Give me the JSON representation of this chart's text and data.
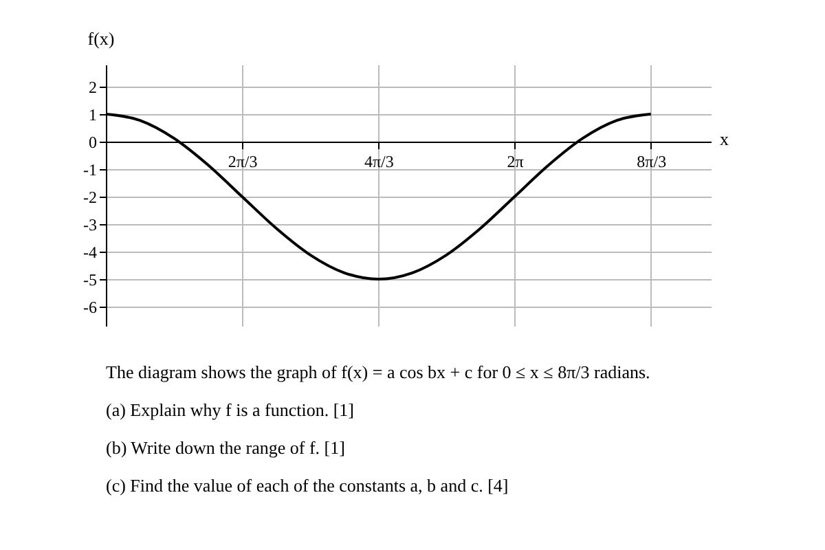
{
  "chart_data": {
    "type": "line",
    "xlabel": "x",
    "ylabel": "f(x)",
    "x": [
      0,
      0.524,
      1.047,
      1.571,
      2.094,
      2.618,
      3.142,
      3.665,
      4.189,
      4.712,
      5.236,
      5.76,
      6.283,
      6.807,
      7.33,
      7.854,
      8.378
    ],
    "series": [
      {
        "color": "#000000",
        "values": [
          1,
          0.77,
          0.12,
          -0.85,
          -2,
          -3.15,
          -4.12,
          -4.77,
          -5,
          -4.77,
          -4.12,
          -3.15,
          -2,
          -0.85,
          0.12,
          0.77,
          1
        ]
      }
    ],
    "xlim": [
      0,
      9.3
    ],
    "ylim": [
      -6.7,
      2.8
    ],
    "xticks": [
      {
        "value": 2.094,
        "label": "2π/3"
      },
      {
        "value": 4.189,
        "label": "4π/3"
      },
      {
        "value": 6.283,
        "label": "2π"
      },
      {
        "value": 8.378,
        "label": "8π/3"
      }
    ],
    "yticks": [
      -6,
      -5,
      -4,
      -3,
      -2,
      -1,
      0,
      1,
      2
    ],
    "grid": true,
    "marker": "none",
    "line_style": "solid",
    "annotations": [
      "The diagram shows the graph of  f(x) = a cos bx + c  for 0 ≤ x ≤ 8π/3  radians.",
      "(a)  Explain why f is a function.   [1]",
      "(b)  Write down the range of f.   [1]",
      "(c)  Find the value of each of the constants a, b and c.   [4]"
    ]
  }
}
